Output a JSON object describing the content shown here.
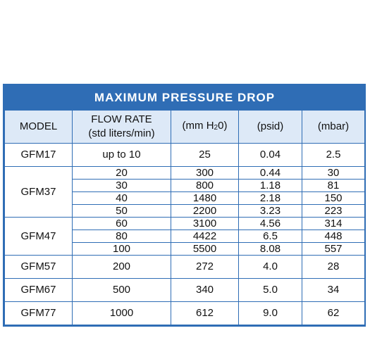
{
  "table": {
    "title": "MAXIMUM PRESSURE DROP",
    "headers": {
      "model": "MODEL",
      "flow_line1": "FLOW RATE",
      "flow_line2": "(std liters/min)",
      "mmh2o_pre": "(mm H",
      "mmh2o_sub": "2",
      "mmh2o_post": "0)",
      "psid": "(psid)",
      "mbar": "(mbar)"
    },
    "groups": [
      {
        "model": "GFM17",
        "rows": [
          {
            "flow": "up to 10",
            "mmh2o": "25",
            "psid": "0.04",
            "mbar": "2.5"
          }
        ]
      },
      {
        "model": "GFM37",
        "rows": [
          {
            "flow": "20",
            "mmh2o": "300",
            "psid": "0.44",
            "mbar": "30"
          },
          {
            "flow": "30",
            "mmh2o": "800",
            "psid": "1.18",
            "mbar": "81"
          },
          {
            "flow": "40",
            "mmh2o": "1480",
            "psid": "2.18",
            "mbar": "150"
          },
          {
            "flow": "50",
            "mmh2o": "2200",
            "psid": "3.23",
            "mbar": "223"
          }
        ]
      },
      {
        "model": "GFM47",
        "rows": [
          {
            "flow": "60",
            "mmh2o": "3100",
            "psid": "4.56",
            "mbar": "314"
          },
          {
            "flow": "80",
            "mmh2o": "4422",
            "psid": "6.5",
            "mbar": "448"
          },
          {
            "flow": "100",
            "mmh2o": "5500",
            "psid": "8.08",
            "mbar": "557"
          }
        ]
      },
      {
        "model": "GFM57",
        "rows": [
          {
            "flow": "200",
            "mmh2o": "272",
            "psid": "4.0",
            "mbar": "28"
          }
        ]
      },
      {
        "model": "GFM67",
        "rows": [
          {
            "flow": "500",
            "mmh2o": "340",
            "psid": "5.0",
            "mbar": "34"
          }
        ]
      },
      {
        "model": "GFM77",
        "rows": [
          {
            "flow": "1000",
            "mmh2o": "612",
            "psid": "9.0",
            "mbar": "62"
          }
        ]
      }
    ],
    "colors": {
      "accent": "#2f6db5",
      "header_bg": "#dde9f7"
    }
  }
}
